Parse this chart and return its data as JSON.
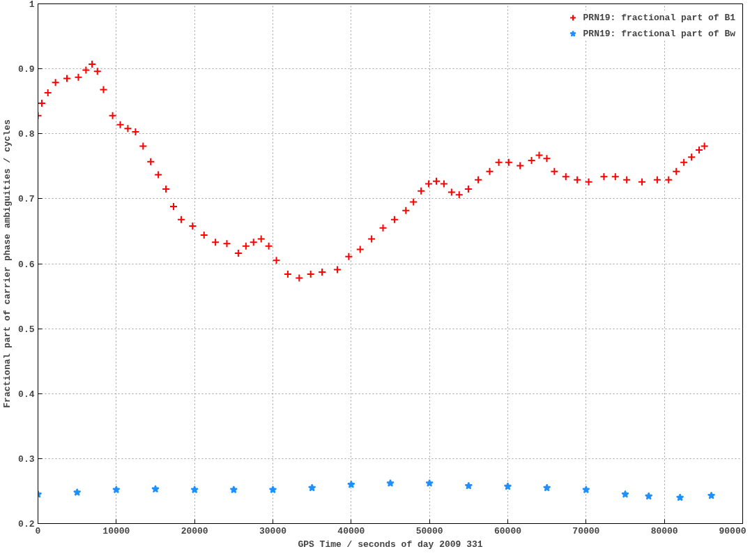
{
  "chart_data": {
    "type": "scatter",
    "xlabel": "GPS Time / seconds of day 2009 331",
    "ylabel": "Fractional part of carrier phase ambiguities / cycles",
    "xlim": [
      0,
      90000
    ],
    "ylim": [
      0.2,
      1
    ],
    "xticks": [
      0,
      10000,
      20000,
      30000,
      40000,
      50000,
      60000,
      70000,
      80000,
      90000
    ],
    "yticks": [
      0.2,
      0.3,
      0.4,
      0.5,
      0.6,
      0.7,
      0.8,
      0.9,
      1
    ],
    "grid": true,
    "legend": "top right",
    "series": [
      {
        "name": "PRN19: fractional part of B1",
        "color": "#ff0000",
        "marker": "cross",
        "x": [
          0,
          486,
          1265,
          2237,
          3696,
          5155,
          6128,
          6907,
          7588,
          8366,
          9533,
          10506,
          11479,
          12451,
          13424,
          14397,
          15370,
          16342,
          17315,
          18288,
          19747,
          21206,
          22665,
          24124,
          25583,
          26556,
          27529,
          28502,
          29475,
          30447,
          31906,
          33366,
          34825,
          36284,
          38229,
          39689,
          41148,
          42607,
          44066,
          45525,
          46984,
          47957,
          48930,
          49903,
          50875,
          51848,
          52821,
          53794,
          54961,
          56226,
          57685,
          58852,
          60117,
          61576,
          63035,
          64008,
          64981,
          65953,
          67412,
          68872,
          70331,
          72276,
          73735,
          75194,
          77140,
          79086,
          80545,
          81518,
          82490,
          83463,
          84436,
          85117
        ],
        "values": [
          0.828,
          0.847,
          0.863,
          0.879,
          0.885,
          0.887,
          0.898,
          0.907,
          0.896,
          0.868,
          0.828,
          0.814,
          0.808,
          0.803,
          0.781,
          0.757,
          0.737,
          0.715,
          0.688,
          0.668,
          0.658,
          0.644,
          0.633,
          0.631,
          0.616,
          0.627,
          0.633,
          0.638,
          0.627,
          0.605,
          0.584,
          0.578,
          0.584,
          0.587,
          0.591,
          0.611,
          0.622,
          0.638,
          0.655,
          0.668,
          0.682,
          0.695,
          0.712,
          0.723,
          0.727,
          0.723,
          0.71,
          0.706,
          0.715,
          0.729,
          0.742,
          0.756,
          0.756,
          0.751,
          0.759,
          0.767,
          0.762,
          0.742,
          0.734,
          0.729,
          0.726,
          0.734,
          0.734,
          0.729,
          0.726,
          0.729,
          0.729,
          0.742,
          0.756,
          0.764,
          0.775,
          0.781
        ]
      },
      {
        "name": "PRN19: fractional part of Bw",
        "color": "#1e90ff",
        "marker": "star",
        "x": [
          0,
          5000,
          10000,
          15000,
          20000,
          25000,
          30000,
          35000,
          40000,
          45000,
          50000,
          55000,
          60000,
          65000,
          70000,
          75000,
          78000,
          82000,
          86000
        ],
        "values": [
          0.245,
          0.248,
          0.252,
          0.253,
          0.252,
          0.252,
          0.252,
          0.255,
          0.26,
          0.262,
          0.262,
          0.258,
          0.257,
          0.255,
          0.252,
          0.245,
          0.242,
          0.24,
          0.243
        ]
      }
    ]
  }
}
